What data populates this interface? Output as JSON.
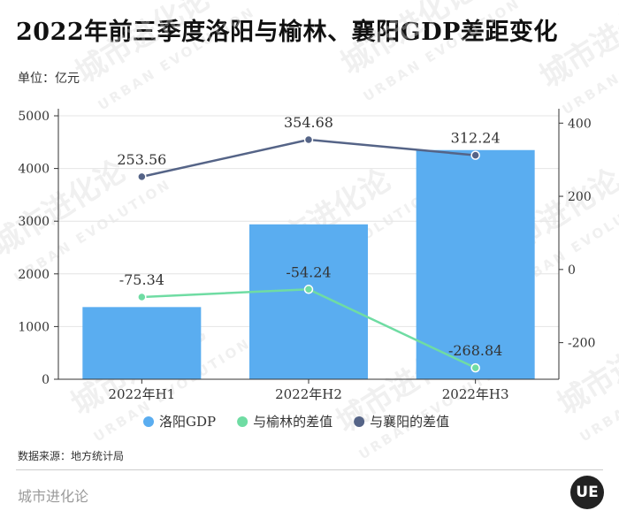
{
  "header": {
    "title": "2022年前三季度洛阳与榆林、襄阳GDP差距变化",
    "unit": "单位：亿元"
  },
  "chart_data": {
    "type": "bar",
    "categories": [
      "2022年H1",
      "2022年H2",
      "2022年H3"
    ],
    "ylim_left": [
      0,
      5000
    ],
    "ylim_right": [
      -300,
      420
    ],
    "left_ticks": [
      0,
      1000,
      2000,
      3000,
      4000,
      5000
    ],
    "right_ticks": [
      -200,
      0,
      200,
      400
    ],
    "series": [
      {
        "name": "洛阳GDP",
        "kind": "bar",
        "axis": "left",
        "color": "#5aadf0",
        "values": [
          1370,
          2940,
          4350
        ]
      },
      {
        "name": "与榆林的差值",
        "kind": "line",
        "axis": "right",
        "color": "#6fdca3",
        "values": [
          -75.34,
          -54.24,
          -268.84
        ],
        "labels": [
          "-75.34",
          "-54.24",
          "-268.84"
        ]
      },
      {
        "name": "与襄阳的差值",
        "kind": "line",
        "axis": "right",
        "color": "#556487",
        "values": [
          253.56,
          354.68,
          312.24
        ],
        "labels": [
          "253.56",
          "354.68",
          "312.24"
        ]
      }
    ],
    "grid": true,
    "legend": "bottom"
  },
  "footer": {
    "source": "数据来源：地方统计局",
    "brand": "城市进化论",
    "logo": "UE"
  },
  "watermark": {
    "cn": "城市进化论",
    "en": "URBAN EVOLUTION"
  }
}
